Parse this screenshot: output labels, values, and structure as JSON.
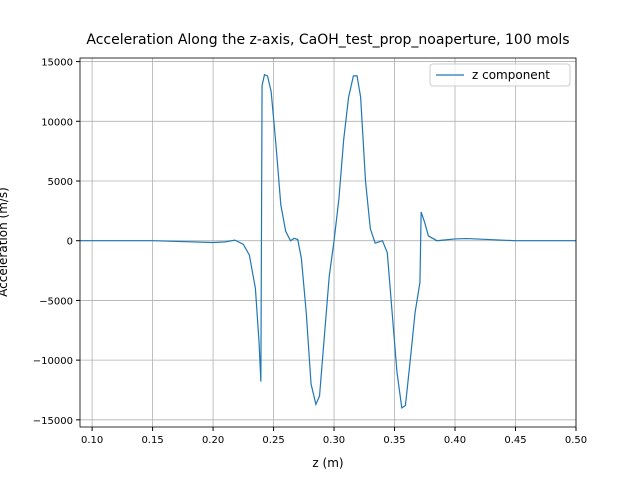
{
  "chart_data": {
    "type": "line",
    "title": "Acceleration Along the z-axis, CaOH_test_prop_noaperture, 100 mols",
    "x_label": "z (m)",
    "y_label": "Acceleration (m/s)",
    "x": [
      0.09,
      0.15,
      0.2,
      0.21,
      0.218,
      0.225,
      0.23,
      0.235,
      0.238,
      0.2395,
      0.2405,
      0.2425,
      0.245,
      0.248,
      0.252,
      0.256,
      0.26,
      0.264,
      0.267,
      0.27,
      0.273,
      0.277,
      0.281,
      0.285,
      0.288,
      0.292,
      0.296,
      0.3,
      0.304,
      0.308,
      0.312,
      0.316,
      0.319,
      0.322,
      0.326,
      0.33,
      0.334,
      0.337,
      0.34,
      0.344,
      0.348,
      0.352,
      0.356,
      0.359,
      0.363,
      0.367,
      0.371,
      0.372,
      0.375,
      0.378,
      0.385,
      0.39,
      0.4,
      0.41,
      0.45,
      0.5
    ],
    "series": [
      {
        "name": "z component",
        "color": "#1f77b4",
        "values": [
          0,
          0,
          -150,
          -100,
          50,
          -300,
          -1200,
          -4000,
          -8500,
          -11800,
          13000,
          13900,
          13800,
          12500,
          8000,
          3000,
          800,
          0,
          200,
          100,
          -1500,
          -6000,
          -12000,
          -13700,
          -13000,
          -8000,
          -3000,
          0,
          3500,
          8500,
          12000,
          13800,
          13800,
          12000,
          5000,
          1000,
          -200,
          -100,
          0,
          -1000,
          -6000,
          -11000,
          -14000,
          -13800,
          -10000,
          -6000,
          -3500,
          2400,
          1500,
          400,
          0,
          50,
          150,
          180,
          0,
          0
        ]
      }
    ],
    "xlim": [
      0.09,
      0.5
    ],
    "ylim": [
      -15600,
      15300
    ],
    "xticks": [
      {
        "value": 0.1,
        "label": "0.10"
      },
      0.15,
      {
        "value": 0.2,
        "label": "0.20"
      },
      0.25,
      {
        "value": 0.3,
        "label": "0.30"
      },
      0.35,
      {
        "value": 0.4,
        "label": "0.40"
      },
      0.45,
      {
        "value": 0.5,
        "label": "0.50"
      }
    ],
    "yticks": [
      {
        "value": -15000,
        "label": "−15000"
      },
      {
        "value": -10000,
        "label": "−10000"
      },
      {
        "value": -5000,
        "label": "−5000"
      },
      0,
      5000,
      10000,
      15000
    ],
    "grid": true,
    "legend": "upper right"
  }
}
